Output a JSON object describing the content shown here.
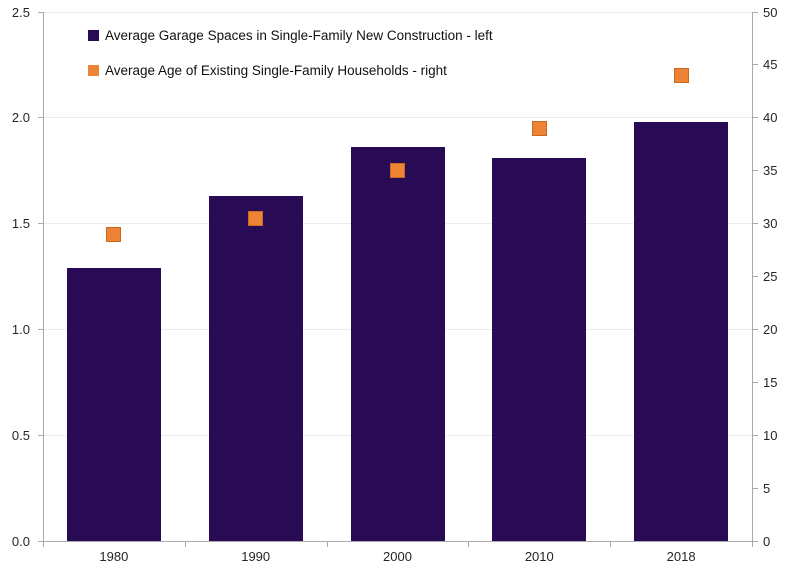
{
  "chart_data": {
    "type": "bar",
    "subtype": "combo-bar-scatter-dual-axis",
    "categories": [
      "1980",
      "1990",
      "2000",
      "2010",
      "2018"
    ],
    "series": [
      {
        "name": "Average Garage Spaces in Single-Family New Construction - left",
        "type": "bar",
        "axis": "left",
        "color": "#280B54",
        "values": [
          1.29,
          1.63,
          1.86,
          1.81,
          1.98
        ]
      },
      {
        "name": "Average Age of Existing Single-Family Households - right",
        "type": "scatter",
        "axis": "right",
        "color": "#EF8335",
        "marker_border_color": "#C96A22",
        "values": [
          29,
          30.5,
          35,
          39,
          44
        ]
      }
    ],
    "title": "",
    "xlabel": "",
    "ylabel_left": "",
    "ylabel_right": "",
    "left_axis": {
      "min": 0,
      "max": 2.5,
      "step": 0.5,
      "tick_labels": [
        "0.0",
        "0.5",
        "1.0",
        "1.5",
        "2.0",
        "2.5"
      ]
    },
    "right_axis": {
      "min": 0,
      "max": 50,
      "step": 5,
      "tick_labels": [
        "0",
        "5",
        "10",
        "15",
        "20",
        "25",
        "30",
        "35",
        "40",
        "45",
        "50"
      ]
    },
    "grid": true,
    "legend_position": "top-left"
  },
  "colors": {
    "bar_fill": "#280B54",
    "marker_fill": "#EF8335",
    "marker_border": "#C96A22",
    "gridline": "#ECECEC",
    "axis_line": "#A9A9A9",
    "tick_text": "#262626",
    "background": "#FFFFFF"
  }
}
